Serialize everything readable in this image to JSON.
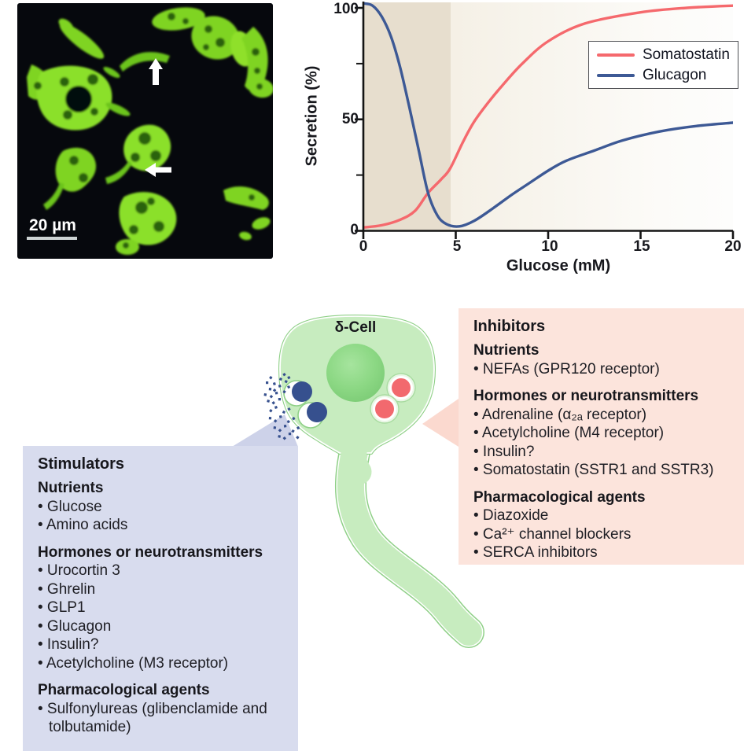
{
  "colors": {
    "somatostatin": "#f5696d",
    "glucagon": "#3d5995",
    "cell_fill": "#c7ecbf",
    "cell_outline": "#8fd087",
    "granule_blue": "#36508e",
    "granule_red": "#f2696e",
    "stimulators_bg": "#d8dcee",
    "inhibitors_bg": "#fce4dc",
    "shaded_band": "#e7dece",
    "micrograph_green": "#7fd421"
  },
  "micrograph": {
    "scale_bar_label": "20 µm"
  },
  "chart_data": {
    "type": "line",
    "title": "",
    "xlabel": "Glucose (mM)",
    "ylabel": "Secretion (%)",
    "xlim": [
      0,
      20
    ],
    "ylim": [
      0,
      100
    ],
    "x_ticks": [
      0,
      5,
      10,
      15,
      20
    ],
    "y_ticks": [
      0,
      50,
      100
    ],
    "y_minor_ticks": [
      25,
      75
    ],
    "shaded_region_x": [
      0,
      4.7
    ],
    "grid": false,
    "legend_position": "upper right",
    "series": [
      {
        "name": "Somatostatin",
        "color": "#f5696d",
        "points": [
          [
            0,
            1.5
          ],
          [
            1,
            2.5
          ],
          [
            2,
            5
          ],
          [
            2.8,
            9
          ],
          [
            3.5,
            17
          ],
          [
            4.2,
            23
          ],
          [
            4.7,
            28
          ],
          [
            5.4,
            40
          ],
          [
            6,
            49
          ],
          [
            6.8,
            58
          ],
          [
            7.5,
            65
          ],
          [
            8.6,
            75
          ],
          [
            10,
            85
          ],
          [
            12,
            93
          ],
          [
            15,
            98
          ],
          [
            17.5,
            100
          ],
          [
            20,
            101
          ]
        ]
      },
      {
        "name": "Glucagon",
        "color": "#3d5995",
        "points": [
          [
            0,
            102
          ],
          [
            0.5,
            101
          ],
          [
            1,
            96
          ],
          [
            1.5,
            87
          ],
          [
            2,
            73
          ],
          [
            2.5,
            55
          ],
          [
            3,
            36
          ],
          [
            3.5,
            17
          ],
          [
            4,
            7
          ],
          [
            4.5,
            3
          ],
          [
            5.2,
            2
          ],
          [
            6,
            4.5
          ],
          [
            7,
            10
          ],
          [
            8,
            16
          ],
          [
            9,
            21.5
          ],
          [
            10,
            27
          ],
          [
            11,
            31.5
          ],
          [
            12.5,
            36
          ],
          [
            14,
            40.5
          ],
          [
            16,
            44.5
          ],
          [
            18,
            47
          ],
          [
            20,
            48.5
          ]
        ]
      }
    ]
  },
  "legend": {
    "entries": [
      {
        "label": "Somatostatin",
        "color": "#f5696d"
      },
      {
        "label": "Glucagon",
        "color": "#3d5995"
      }
    ]
  },
  "cell": {
    "label": "δ-Cell"
  },
  "stimulators": {
    "title": "Stimulators",
    "sections": [
      {
        "header": "Nutrients",
        "items": [
          "Glucose",
          "Amino acids"
        ]
      },
      {
        "header": "Hormones or neurotransmitters",
        "items": [
          "Urocortin 3",
          "Ghrelin",
          "GLP1",
          "Glucagon",
          "Insulin?",
          "Acetylcholine (M3 receptor)"
        ]
      },
      {
        "header": "Pharmacological agents",
        "items": [
          "Sulfonylureas (glibenclamide and tolbutamide)"
        ]
      }
    ]
  },
  "inhibitors": {
    "title": "Inhibitors",
    "sections": [
      {
        "header": "Nutrients",
        "items": [
          "NEFAs (GPR120 receptor)"
        ]
      },
      {
        "header": "Hormones or neurotransmitters",
        "items": [
          "Adrenaline (α₂ₐ receptor)",
          "Acetylcholine (M4 receptor)",
          "Insulin?",
          "Somatostatin (SSTR1 and SSTR3)"
        ]
      },
      {
        "header": "Pharmacological agents",
        "items": [
          "Diazoxide",
          "Ca²⁺ channel blockers",
          "SERCA inhibitors"
        ]
      }
    ]
  }
}
